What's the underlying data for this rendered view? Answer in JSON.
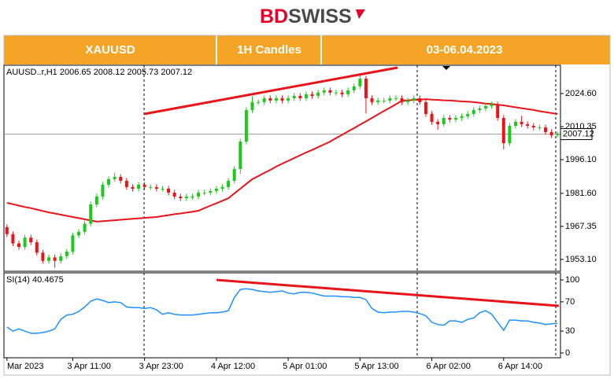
{
  "logo": {
    "bd": "BD",
    "swiss": "SWISS"
  },
  "header": {
    "symbol": "XAUUSD",
    "timeframe": "1H Candles",
    "dates": "03-06.04.2023"
  },
  "chart_data": [
    {
      "type": "candlestick",
      "symbol": "AUUSD..r,H1",
      "categories": [
        "Mar 2023",
        null,
        null,
        null,
        null,
        null,
        null,
        null,
        null,
        null,
        null,
        "3 Apr 11:00",
        null,
        null,
        null,
        null,
        null,
        null,
        null,
        null,
        null,
        null,
        null,
        "3 Apr 23:00",
        null,
        null,
        null,
        null,
        null,
        null,
        null,
        null,
        null,
        null,
        null,
        "4 Apr 12:00",
        null,
        null,
        null,
        null,
        null,
        null,
        null,
        null,
        null,
        null,
        null,
        "5 Apr 01:00",
        null,
        null,
        null,
        null,
        null,
        null,
        null,
        null,
        null,
        null,
        null,
        "5 Apr 13:00",
        null,
        null,
        null,
        null,
        null,
        null,
        null,
        null,
        null,
        null,
        null,
        "6 Apr 02:00",
        null,
        null,
        null,
        null,
        null,
        null,
        null,
        null,
        null,
        null,
        null,
        "6 Apr 14:00",
        null,
        null,
        null,
        null,
        null,
        null,
        null,
        null,
        null
      ],
      "open": [
        1967.0,
        1964.0,
        1960.0,
        1958.5,
        1962.5,
        1960.5,
        1956.0,
        1952.5,
        1954.0,
        1952.5,
        1954.5,
        1956.5,
        1963.5,
        1965.0,
        1968.5,
        1976.8,
        1980.2,
        1985.3,
        1987.7,
        1988.7,
        1987.0,
        1984.3,
        1983.6,
        1985.3,
        1984.3,
        1984.3,
        1983.6,
        1983.6,
        1981.9,
        1980.2,
        1979.5,
        1980.2,
        1980.2,
        1981.9,
        1981.9,
        1982.6,
        1983.6,
        1984.3,
        1987.0,
        1992.1,
        2003.9,
        2017.5,
        2020.9,
        2020.9,
        2022.6,
        2021.6,
        2022.6,
        2021.6,
        2022.6,
        2023.6,
        2022.6,
        2024.3,
        2023.6,
        2025.0,
        2026.0,
        2025.0,
        2025.0,
        2024.3,
        2026.0,
        2027.7,
        2031.0,
        2022.6,
        2020.9,
        2021.6,
        2021.6,
        2022.6,
        2022.6,
        2020.9,
        2021.6,
        2022.6,
        2020.9,
        2015.8,
        2012.4,
        2011.4,
        2014.1,
        2013.4,
        2014.1,
        2014.8,
        2015.8,
        2017.5,
        2018.2,
        2019.2,
        2019.9,
        2014.1,
        2003.2,
        2010.7,
        2012.4,
        2011.4,
        2010.7,
        2010.0,
        2010.0,
        2008.0,
        2006.65
      ],
      "high": [
        1968.2,
        1965.2,
        1961.2,
        1963.7,
        1963.7,
        1961.7,
        1957.2,
        1955.2,
        1955.2,
        1955.7,
        1957.7,
        1964.7,
        1966.2,
        1969.7,
        1978.0,
        1981.4,
        1986.5,
        1988.9,
        1990.5,
        1989.9,
        1988.2,
        1985.5,
        1986.5,
        1986.5,
        1985.5,
        1985.5,
        1984.8,
        1984.8,
        1983.1,
        1981.4,
        1981.4,
        1981.4,
        1983.1,
        1983.1,
        1983.8,
        1984.8,
        1985.5,
        1988.2,
        1993.3,
        2005.1,
        2018.7,
        2023.5,
        2022.1,
        2023.8,
        2023.8,
        2023.8,
        2023.8,
        2023.8,
        2024.8,
        2024.8,
        2025.5,
        2025.5,
        2026.2,
        2027.2,
        2027.2,
        2026.2,
        2026.2,
        2027.2,
        2028.9,
        2033.0,
        2032.2,
        2023.8,
        2022.8,
        2022.8,
        2023.8,
        2023.8,
        2023.8,
        2022.8,
        2023.8,
        2023.8,
        2022.1,
        2017.0,
        2013.6,
        2015.3,
        2015.3,
        2015.3,
        2016.0,
        2017.0,
        2018.7,
        2019.4,
        2020.4,
        2021.1,
        2021.1,
        2015.3,
        2011.9,
        2013.6,
        2015.0,
        2012.6,
        2011.9,
        2011.2,
        2011.2,
        2009.2,
        2008.12
      ],
      "low": [
        1962.8,
        1958.8,
        1957.3,
        1957.3,
        1959.3,
        1954.8,
        1951.3,
        1951.3,
        1949.5,
        1951.3,
        1953.3,
        1955.3,
        1962.3,
        1963.8,
        1967.3,
        1975.6,
        1979.0,
        1984.1,
        1986.5,
        1985.8,
        1983.1,
        1982.4,
        1982.4,
        1983.1,
        1983.1,
        1982.4,
        1982.4,
        1980.7,
        1979.0,
        1978.3,
        1978.3,
        1979.0,
        1979.0,
        1980.7,
        1980.7,
        1981.4,
        1982.4,
        1983.1,
        1985.8,
        1990.0,
        2002.7,
        2016.3,
        2019.7,
        2019.7,
        2020.4,
        2020.4,
        2020.4,
        2020.4,
        2021.4,
        2021.4,
        2021.4,
        2022.4,
        2022.4,
        2023.8,
        2023.8,
        2023.8,
        2023.1,
        2023.1,
        2024.8,
        2026.5,
        2016.0,
        2019.7,
        2019.7,
        2020.4,
        2020.4,
        2021.4,
        2019.7,
        2019.7,
        2020.4,
        2019.7,
        2014.6,
        2011.2,
        2009.0,
        2010.2,
        2012.2,
        2012.2,
        2012.9,
        2013.6,
        2014.6,
        2016.3,
        2017.0,
        2018.0,
        2012.9,
        2000.5,
        2002.0,
        2009.5,
        2010.2,
        2009.5,
        2008.8,
        2008.8,
        2006.8,
        2005.5,
        2005.73
      ],
      "close": [
        1964.0,
        1960.0,
        1958.5,
        1962.5,
        1960.5,
        1956.0,
        1952.5,
        1954.0,
        1952.5,
        1954.5,
        1956.5,
        1963.5,
        1965.0,
        1968.5,
        1976.8,
        1980.2,
        1985.3,
        1987.7,
        1988.7,
        1987.0,
        1984.3,
        1983.6,
        1985.3,
        1984.3,
        1984.3,
        1983.6,
        1983.6,
        1981.9,
        1980.2,
        1979.5,
        1980.2,
        1980.2,
        1981.9,
        1981.9,
        1982.6,
        1983.6,
        1984.3,
        1987.0,
        1992.1,
        2003.9,
        2017.5,
        2020.9,
        2020.9,
        2022.6,
        2021.6,
        2022.6,
        2021.6,
        2022.6,
        2023.6,
        2022.6,
        2024.3,
        2023.6,
        2025.0,
        2026.0,
        2025.0,
        2025.0,
        2024.3,
        2026.0,
        2027.7,
        2031.0,
        2022.6,
        2020.9,
        2021.6,
        2021.6,
        2022.6,
        2022.6,
        2020.9,
        2021.6,
        2022.6,
        2020.9,
        2015.8,
        2012.4,
        2011.4,
        2014.1,
        2013.4,
        2014.1,
        2014.8,
        2015.8,
        2017.5,
        2018.2,
        2019.2,
        2019.9,
        2014.1,
        2003.2,
        2010.7,
        2012.4,
        2011.4,
        2010.7,
        2010.0,
        2010.0,
        2008.0,
        2006.65,
        2007.12
      ],
      "up_color": "#1ec81e",
      "down_color": "#e8141a",
      "ma": {
        "color": "#e8141a",
        "values": [
          1977.5,
          1976.9,
          1976.3,
          1975.7,
          1975.2,
          1974.6,
          1974.0,
          1973.4,
          1972.9,
          1972.4,
          1971.9,
          1971.4,
          1970.9,
          1970.4,
          1969.9,
          1969.4,
          1969.6,
          1969.8,
          1970.0,
          1970.2,
          1970.4,
          1970.6,
          1970.8,
          1971.0,
          1971.2,
          1971.4,
          1971.8,
          1972.2,
          1972.6,
          1972.9,
          1973.3,
          1973.7,
          1974.1,
          1975.2,
          1976.3,
          1977.3,
          1978.4,
          1979.5,
          1981.6,
          1983.6,
          1985.7,
          1987.7,
          1989.0,
          1990.4,
          1991.7,
          1993.1,
          1994.4,
          1995.6,
          1996.8,
          1998.0,
          1999.2,
          2000.3,
          2001.5,
          2002.7,
          2003.9,
          2005.4,
          2006.8,
          2008.3,
          2009.7,
          2011.2,
          2012.6,
          2014.1,
          2015.6,
          2017.1,
          2018.5,
          2020.0,
          2021.5,
          2021.7,
          2021.9,
          2022.0,
          2022.2,
          2022.0,
          2021.9,
          2021.7,
          2021.6,
          2021.4,
          2021.2,
          2021.1,
          2020.9,
          2020.6,
          2020.3,
          2020.1,
          2019.8,
          2019.5,
          2019.1,
          2018.7,
          2018.3,
          2017.9,
          2017.5,
          2017.0,
          2016.6,
          2016.2,
          2015.8
        ]
      },
      "ylim": [
        1948.0,
        2036.8
      ],
      "yticks": [
        {
          "value": 2024.6,
          "label": "2024.60"
        },
        2010.35,
        {
          "value": 1996.1,
          "label": "1996.10"
        },
        {
          "value": 1981.6,
          "label": "1981.60"
        },
        1967.35,
        {
          "value": 1953.1,
          "label": "1953.10"
        }
      ]
    },
    {
      "type": "line",
      "name": "SI(14)",
      "color": "#1e90ff",
      "values": [
        35.5,
        30,
        33,
        30,
        27,
        27,
        28,
        30,
        33,
        46,
        52,
        53,
        57,
        63,
        71,
        74,
        72,
        69,
        70,
        69,
        63,
        62,
        62,
        61,
        62,
        59,
        53,
        55,
        53,
        52,
        52,
        52,
        53,
        54,
        55,
        55,
        56,
        58,
        76,
        87,
        88,
        87,
        85,
        84,
        83,
        84,
        85,
        82,
        81,
        83,
        83,
        82,
        80,
        78,
        78,
        78,
        77,
        77,
        76,
        76,
        73,
        61,
        56,
        55,
        56,
        56,
        57,
        57,
        56,
        54,
        51,
        42,
        39,
        38,
        44,
        44,
        42,
        46,
        48,
        55,
        58,
        53,
        42,
        31,
        45,
        45,
        44,
        44,
        42,
        41,
        39,
        40,
        40.4675
      ],
      "ylim": [
        -6.5,
        109.7
      ],
      "yticks": [
        100,
        70,
        30,
        0
      ]
    }
  ]
}
